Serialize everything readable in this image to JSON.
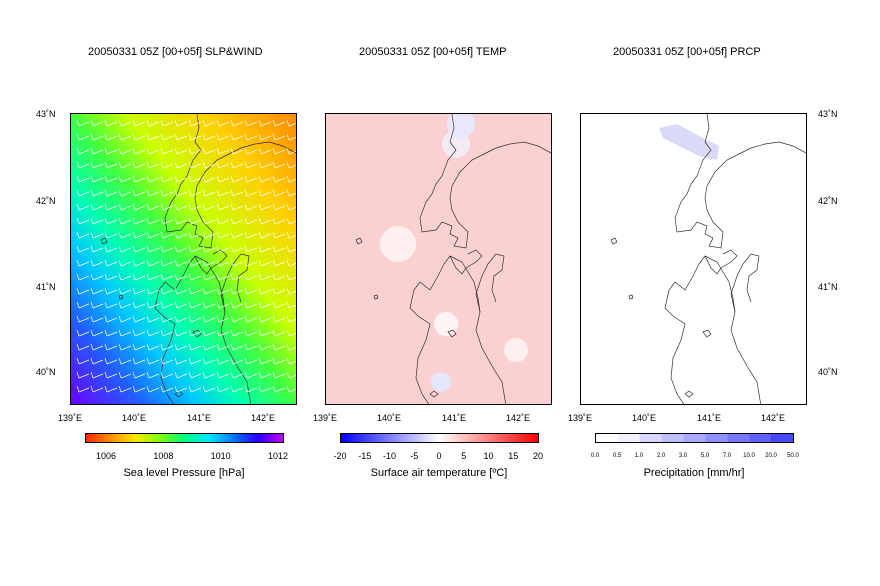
{
  "panels": [
    {
      "id": "slp",
      "title": "20050331 05Z [00+05f] SLP&WIND"
    },
    {
      "id": "temp",
      "title": "20050331 05Z [00+05f] TEMP"
    },
    {
      "id": "prcp",
      "title": "20050331 05Z [00+05f] PRCP"
    }
  ],
  "axes": {
    "lat_labels": [
      "43˚N",
      "42˚N",
      "41˚N",
      "40˚N"
    ],
    "lon_labels": [
      "139˚E",
      "140˚E",
      "141˚E",
      "142˚E"
    ]
  },
  "colorbars": {
    "slp": {
      "title": "Sea level Pressure [hPa]",
      "ticks": [
        "1006",
        "1008",
        "1010",
        "1012"
      ],
      "colors": [
        "#ff2a00",
        "#ff8c00",
        "#ffe600",
        "#7dff00",
        "#00ff80",
        "#00e6ff",
        "#0078ff",
        "#2a00ff",
        "#c800ff"
      ]
    },
    "temp": {
      "title": "Surface air temperature [ºC]",
      "ticks": [
        "-20",
        "-15",
        "-10",
        "-5",
        "0",
        "5",
        "10",
        "15",
        "20"
      ],
      "colors": [
        "#0000ff",
        "#ffffff",
        "#ff0000"
      ]
    },
    "prcp": {
      "title": "Precipitation [mm/hr]",
      "ticks": [
        "0.0",
        "0.5",
        "1.0",
        "2.0",
        "3.0",
        "5.0",
        "7.0",
        "10.0",
        "20.0",
        "50.0"
      ],
      "colors": [
        "#ffffff",
        "#f0f0ff",
        "#d8d8ff",
        "#c0c0ff",
        "#a8a8ff",
        "#9090ff",
        "#7878ff",
        "#6060ff",
        "#4848ff"
      ]
    }
  }
}
